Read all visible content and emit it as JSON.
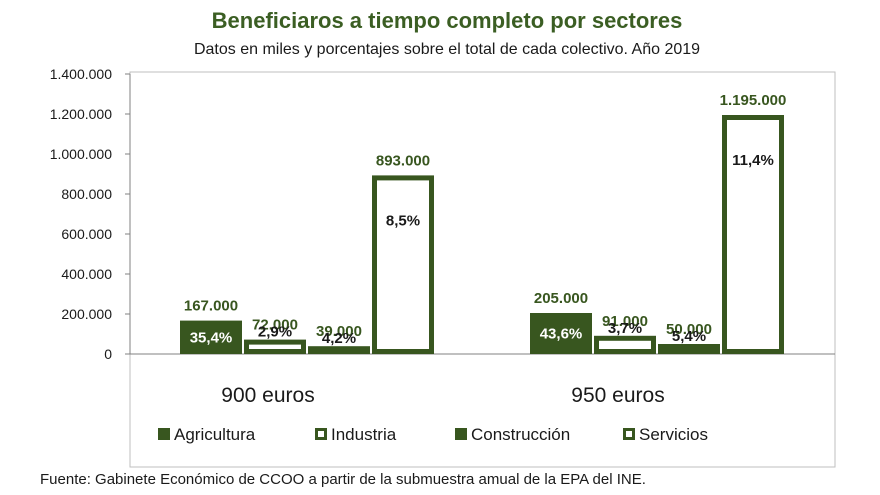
{
  "colors": {
    "dark_green": "#38561f",
    "title_green": "#3b5e23",
    "text": "#1a1a1a",
    "axis": "#808080",
    "frame": "#bfbfbf"
  },
  "chart_data": {
    "type": "bar",
    "title": "Beneficiaros a tiempo completo por sectores",
    "subtitle": "Datos en miles y porcentajes sobre el total de cada colectivo. Año 2019",
    "categories": [
      "900 euros",
      "950 euros"
    ],
    "series": [
      {
        "name": "Agricultura",
        "style": "filled",
        "values": [
          167000,
          205000
        ],
        "value_labels": [
          "167.000",
          "205.000"
        ],
        "pct_labels": [
          "35,4%",
          "43,6%"
        ]
      },
      {
        "name": "Industria",
        "style": "outlined",
        "values": [
          72000,
          91000
        ],
        "value_labels": [
          "72.000",
          "91.000"
        ],
        "pct_labels": [
          "2,9%",
          "3,7%"
        ]
      },
      {
        "name": "Construcción",
        "style": "filled",
        "values": [
          39000,
          50000
        ],
        "value_labels": [
          "39.000",
          "50.000"
        ],
        "pct_labels": [
          "4,2%",
          "5,4%"
        ]
      },
      {
        "name": "Servicios",
        "style": "outlined",
        "values": [
          893000,
          1195000
        ],
        "value_labels": [
          "893.000",
          "1.195.000"
        ],
        "pct_labels": [
          "8,5%",
          "11,4%"
        ]
      }
    ],
    "y_ticks": [
      "0",
      "200.000",
      "400.000",
      "600.000",
      "800.000",
      "1.000.000",
      "1.200.000",
      "1.400.000"
    ],
    "ylim": [
      0,
      1400000
    ],
    "grid": false,
    "legend_position": "bottom"
  },
  "source": "Fuente: Gabinete Económico de CCOO a partir de la submuestra amual de la EPA del INE."
}
